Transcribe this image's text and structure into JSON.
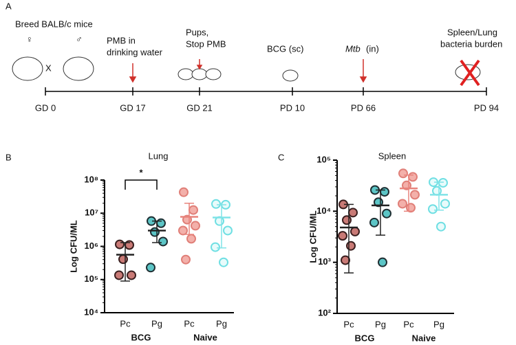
{
  "panel_labels": [
    "A",
    "B",
    "C"
  ],
  "timeline": {
    "ticks": [
      "GD 0",
      "GD 17",
      "GD 21",
      "PD 10",
      "PD 66",
      "PD 94"
    ],
    "events": [
      "Breed BALB/c mice",
      "PMB in",
      "drinking water",
      "Pups,",
      "Stop PMB",
      "BCG (sc)",
      "Mtb",
      "(in)",
      "Spleen/Lung",
      "bacteria burden"
    ],
    "symbols": [
      "♀",
      "♂",
      "X"
    ]
  },
  "chart_data": [
    {
      "type": "scatter",
      "title": "Lung",
      "ylabel": "Log CFU/ML",
      "log_scale": true,
      "categories": [
        "Pc",
        "Pg",
        "Pc",
        "Pg"
      ],
      "group_labels": [
        "BCG",
        "Naive"
      ],
      "ylim": [
        10000,
        100000000
      ],
      "yticks": [
        {
          "value": 10000,
          "label": "10⁴"
        },
        {
          "value": 100000,
          "label": "10⁵"
        },
        {
          "value": 1000000,
          "label": "10⁶"
        },
        {
          "value": 10000000,
          "label": "10⁷"
        },
        {
          "value": 100000000,
          "label": "10⁸"
        }
      ],
      "points": [
        [
          1150000,
          1100000,
          410000,
          135000,
          135000
        ],
        [
          5800000,
          5000000,
          2700000,
          1400000,
          230000
        ],
        [
          43000000,
          12500000,
          6400000,
          4200000,
          3000000,
          1700000,
          400000
        ],
        [
          19000000,
          18000000,
          5800000,
          3000000,
          950000,
          330000
        ]
      ],
      "means": [
        560000,
        3000000,
        7800000,
        7400000
      ],
      "upper": [
        1300000,
        5800000,
        20000000,
        18000000
      ],
      "lower": [
        90000,
        1300000,
        2300000,
        900000
      ],
      "fill_colors": [
        "#c97a76",
        "#5cc5c6",
        "#f3b0aa",
        "#e8fbfb"
      ],
      "edge_colors": [
        "#3a1f1f",
        "#1f2f33",
        "#e07f78",
        "#6fdfe3"
      ],
      "line_colors": [
        "#222222",
        "#222222",
        "#e8837c",
        "#7fe3e7"
      ],
      "annotation": "*"
    },
    {
      "type": "scatter",
      "title": "Spleen",
      "ylabel": "Log CFU/ML",
      "log_scale": true,
      "categories": [
        "Pc",
        "Pg",
        "Pc",
        "Pg"
      ],
      "group_labels": [
        "BCG",
        "Naive"
      ],
      "ylim": [
        100,
        100000
      ],
      "yticks": [
        {
          "value": 100,
          "label": "10²"
        },
        {
          "value": 1000,
          "label": "10³"
        },
        {
          "value": 10000,
          "label": "10⁴"
        },
        {
          "value": 100000,
          "label": "10⁵"
        }
      ],
      "points": [
        [
          13600,
          9400,
          6700,
          4000,
          3300,
          2100,
          1100
        ],
        [
          26000,
          24000,
          15000,
          9000,
          6000,
          1000
        ],
        [
          55000,
          47000,
          32000,
          21000,
          14000,
          11700
        ],
        [
          37000,
          36000,
          25000,
          14000,
          11000,
          5000
        ]
      ],
      "means": [
        4800,
        13000,
        28000,
        21000
      ],
      "upper": [
        13600,
        26000,
        51000,
        37000
      ],
      "lower": [
        620,
        3400,
        10000,
        10500
      ],
      "fill_colors": [
        "#c97a76",
        "#5cc5c6",
        "#f3b0aa",
        "#e8fbfb"
      ],
      "edge_colors": [
        "#3a1f1f",
        "#1f2f33",
        "#e07f78",
        "#6fdfe3"
      ],
      "line_colors": [
        "#222222",
        "#222222",
        "#e8837c",
        "#7fe3e7"
      ]
    }
  ]
}
